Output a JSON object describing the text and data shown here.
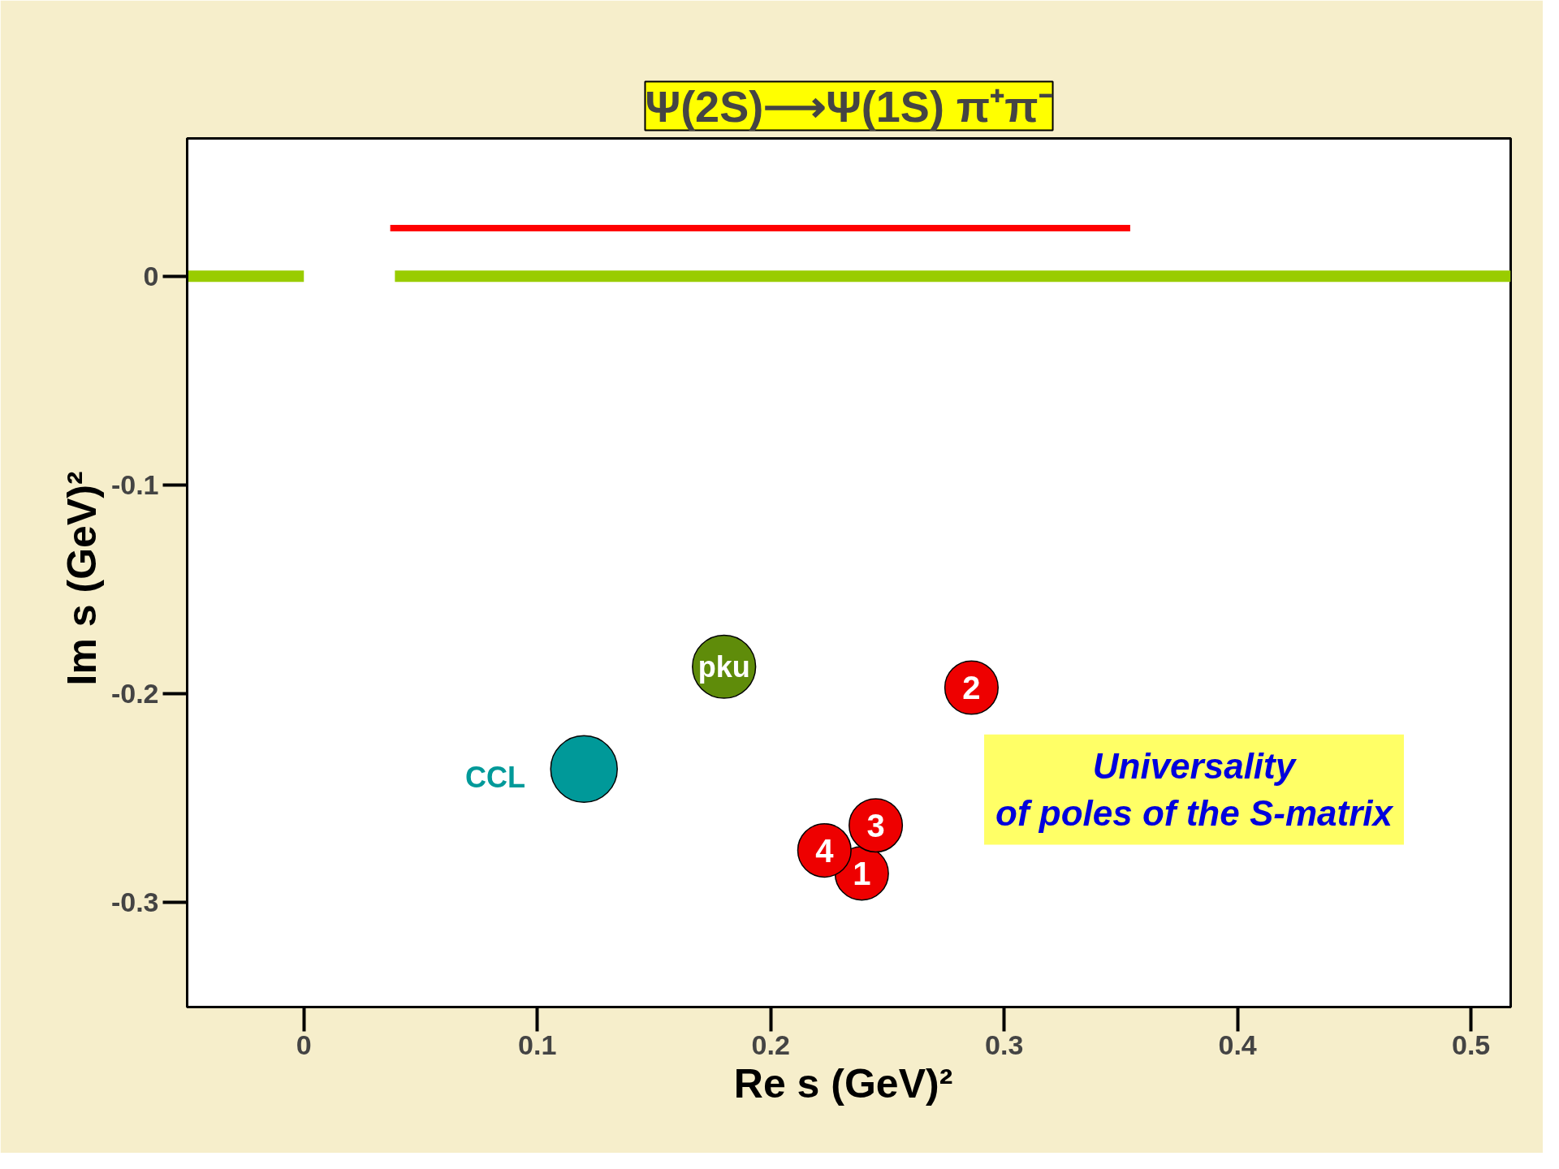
{
  "chart_data": {
    "type": "bubble",
    "title": "Ψ(2S)⟶Ψ(1S) π⁺π⁻",
    "xlabel": "Re s  (GeV)²",
    "ylabel": "Im s  (GeV)²",
    "xlim": [
      -0.05,
      0.517
    ],
    "ylim": [
      -0.35,
      0.066
    ],
    "xticks": [
      0,
      0.1,
      0.2,
      0.3,
      0.4,
      0.5
    ],
    "yticks": [
      0,
      -0.1,
      -0.2,
      -0.3
    ],
    "grid": false,
    "series": [
      {
        "type": "line",
        "color": "#99cc00",
        "x": [
          -0.05,
          0,
          null,
          0.039,
          0.517
        ],
        "values": [
          0,
          0,
          null,
          0,
          0
        ]
      },
      {
        "type": "line",
        "color": "#ff0000",
        "x": [
          0.037,
          0.354
        ],
        "values": [
          0.023,
          0.023
        ]
      },
      {
        "name": "pku",
        "color": "#5f8c0a",
        "x": [
          0.18
        ],
        "values": [
          -0.187
        ],
        "sizes": [
          0.9
        ]
      },
      {
        "name": "CCL",
        "color": "#009999",
        "x": [
          0.12
        ],
        "values": [
          -0.236
        ],
        "sizes": [
          1
        ]
      },
      {
        "color": "#ee0000",
        "x": [
          0.239,
          0.286,
          0.245,
          0.223
        ],
        "values": [
          -0.286,
          -0.197,
          -0.263,
          -0.275
        ],
        "sizes": [
          0.64,
          0.64,
          0.64,
          0.64
        ]
      }
    ],
    "annotations": [
      {
        "text": "1",
        "x": 0.239,
        "y": -0.286
      },
      {
        "text": "2",
        "x": 0.286,
        "y": -0.197
      },
      {
        "text": "3",
        "x": 0.245,
        "y": -0.263
      },
      {
        "text": "4",
        "x": 0.223,
        "y": -0.275
      },
      "Universality\nof poles of the S-matrix"
    ]
  }
}
